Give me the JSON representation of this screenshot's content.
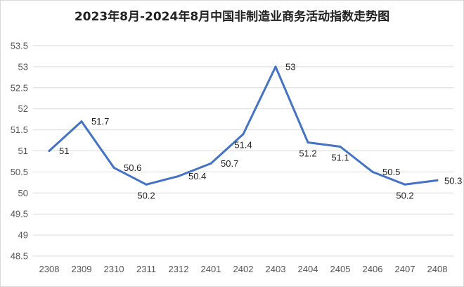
{
  "chart_data": {
    "type": "line",
    "title": "2023年8月-2024年8月中国非制造业商务活动指数走势图",
    "categories": [
      "2308",
      "2309",
      "2310",
      "2311",
      "2312",
      "2401",
      "2402",
      "2403",
      "2404",
      "2405",
      "2406",
      "2407",
      "2408"
    ],
    "series": [
      {
        "values": [
          51,
          51.7,
          50.6,
          50.2,
          50.4,
          50.7,
          51.4,
          53,
          51.2,
          51.1,
          50.5,
          50.2,
          50.3
        ]
      }
    ],
    "data_labels": [
      "51",
      "51.7",
      "50.6",
      "50.2",
      "50.4",
      "50.7",
      "51.4",
      "53",
      "51.2",
      "51.1",
      "50.5",
      "50.2",
      "50.3"
    ],
    "ylim": [
      48.5,
      53.5
    ],
    "yticks": [
      "53.5",
      "53",
      "52.5",
      "52",
      "51.5",
      "51",
      "50.5",
      "50",
      "49.5",
      "49",
      "48.5"
    ],
    "xlabel": "",
    "ylabel": "",
    "grid": true,
    "legend": "none",
    "line_color": "#4472c4",
    "grid_color": "#d9d9d9"
  }
}
